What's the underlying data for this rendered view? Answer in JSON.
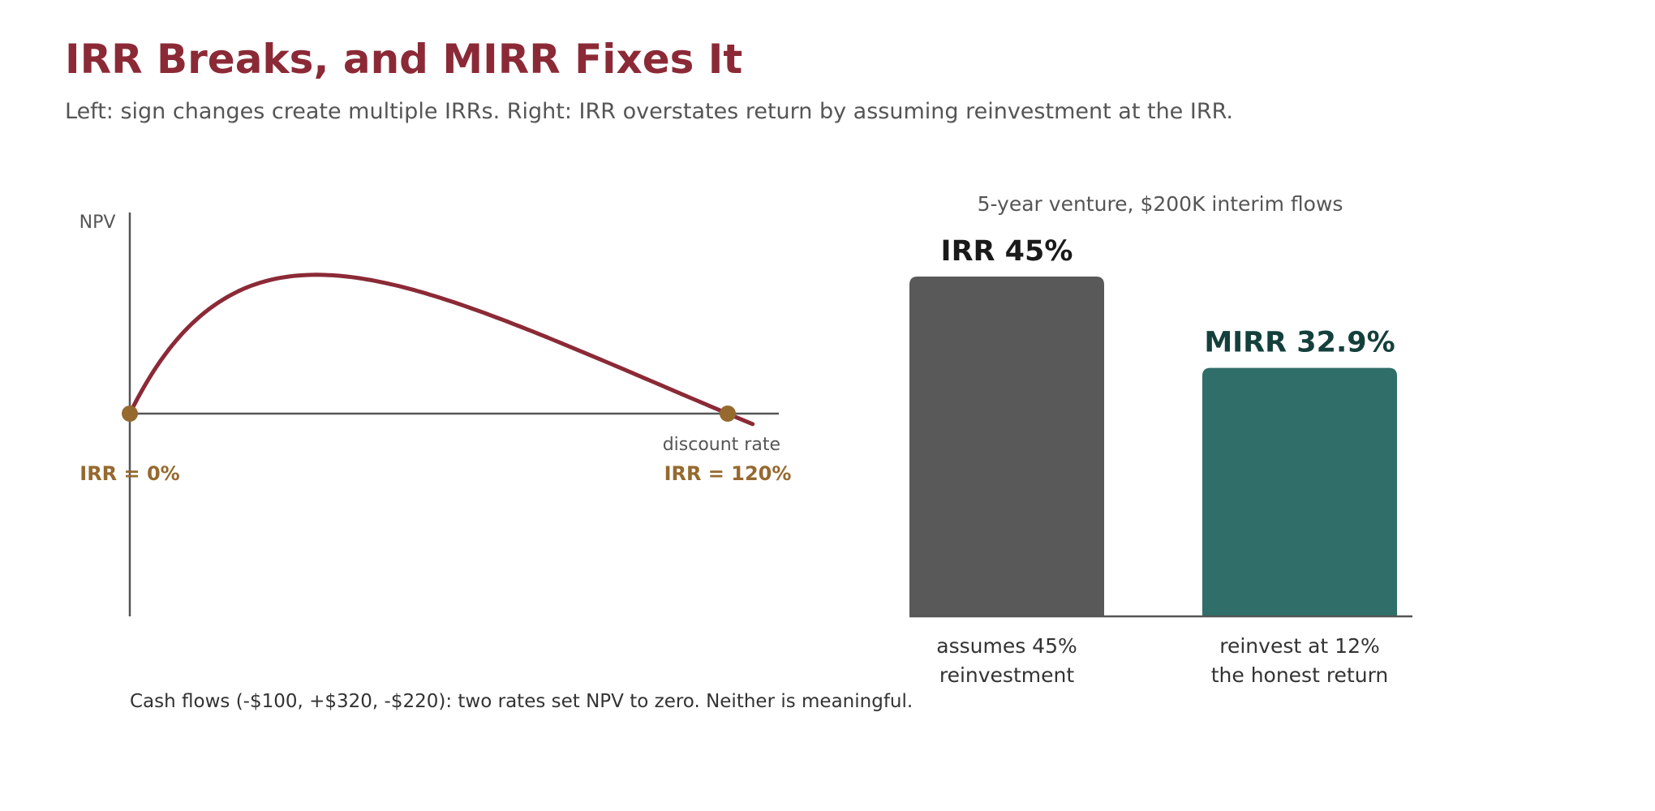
{
  "title": "IRR Breaks, and MIRR Fixes It",
  "subtitle": "Left: sign changes create multiple IRRs. Right: IRR overstates return by assuming reinvestment at the IRR.",
  "colors": {
    "title": "#8b2a36",
    "curve": "#8b2a36",
    "marker": "#96692f",
    "axis": "#555555",
    "bar_irr": "#595959",
    "bar_mirr": "#2f6e69",
    "label_irr": "#1a1a1a",
    "label_mirr": "#14403b",
    "text_muted": "#555555",
    "text_dark": "#333333"
  },
  "chart_data": [
    {
      "type": "line",
      "ylabel": "NPV",
      "xlabel": "discount rate",
      "cash_flows": [
        -100,
        320,
        -220
      ],
      "x_range_pct": [
        0,
        125
      ],
      "roots": [
        {
          "rate_pct": 0,
          "label": "IRR = 0%"
        },
        {
          "rate_pct": 120,
          "label": "IRR = 120%"
        }
      ],
      "note": "Cash flows (-$100, +$320, -$220): two rates set NPV to zero. Neither is meaningful."
    },
    {
      "type": "bar",
      "title": "5-year venture, $200K interim flows",
      "categories": [
        "IRR",
        "MIRR"
      ],
      "values": [
        45,
        32.9
      ],
      "value_labels": [
        "IRR 45%",
        "MIRR 32.9%"
      ],
      "category_labels": [
        [
          "assumes 45%",
          "reinvestment"
        ],
        [
          "reinvest at 12%",
          "the honest return"
        ]
      ],
      "ylim": [
        0,
        45
      ]
    }
  ]
}
